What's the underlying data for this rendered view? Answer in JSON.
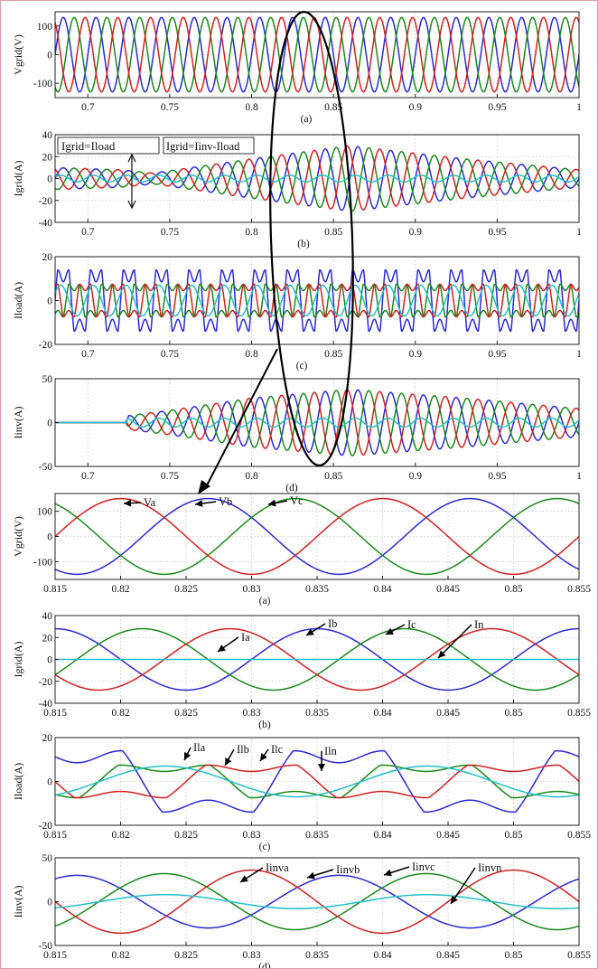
{
  "chart_data": [
    {
      "panel": "(a)",
      "type": "line",
      "ylabel": "Vgrid(V)",
      "xlim": [
        0.68,
        1.0
      ],
      "ylim": [
        -150,
        150
      ],
      "xticks": [
        "0.7",
        "0.75",
        "0.8",
        "0.85",
        "0.9",
        "0.95",
        "1"
      ],
      "yticks": [
        "100",
        "0",
        "-100"
      ],
      "ytick_values": [
        100,
        0,
        -100
      ],
      "grid": true,
      "frequency_hz": 50,
      "amplitude": 130,
      "series": [
        {
          "color": "#2a2ad8",
          "phase_deg": 0
        },
        {
          "color": "#1a8a1a",
          "phase_deg": -120
        },
        {
          "color": "#d42020",
          "phase_deg": 120
        }
      ]
    },
    {
      "panel": "(b)",
      "type": "line",
      "ylabel": "Igrid(A)",
      "xlim": [
        0.68,
        1.0
      ],
      "ylim": [
        -40,
        40
      ],
      "xticks": [
        "0.7",
        "0.75",
        "0.8",
        "0.85",
        "0.9",
        "0.95",
        "1"
      ],
      "yticks": [
        "40",
        "20",
        "0",
        "-20",
        "-40"
      ],
      "ytick_values": [
        40,
        20,
        0,
        -20,
        -40
      ],
      "grid": true,
      "frequency_hz": 50,
      "annotations": [
        "Igrid=Iload",
        "Igrid=Iinv-Iload"
      ],
      "envelope": {
        "t": [
          0.68,
          0.72,
          0.74,
          0.8,
          0.86,
          0.93,
          1.0
        ],
        "amp": [
          10,
          8,
          5,
          18,
          30,
          18,
          8
        ]
      },
      "series": [
        {
          "color": "#2a2ad8",
          "phase_deg": 0
        },
        {
          "color": "#1a8a1a",
          "phase_deg": -120
        },
        {
          "color": "#d42020",
          "phase_deg": 120
        }
      ],
      "neutral": {
        "color": "#20c0c8",
        "amplitude": 3
      }
    },
    {
      "panel": "(c)",
      "type": "line",
      "ylabel": "Iload(A)",
      "xlim": [
        0.68,
        1.0
      ],
      "ylim": [
        -20,
        20
      ],
      "xticks": [
        "0.7",
        "0.75",
        "0.8",
        "0.85",
        "0.9",
        "0.95",
        "1"
      ],
      "yticks": [
        "20",
        "0",
        "-20"
      ],
      "ytick_values": [
        20,
        0,
        -20
      ],
      "grid": true,
      "frequency_hz": 50,
      "series": [
        {
          "color": "#2a2ad8",
          "phase_deg": 0,
          "amplitude": 15
        },
        {
          "color": "#1a8a1a",
          "phase_deg": -120,
          "amplitude": 8
        },
        {
          "color": "#d42020",
          "phase_deg": 120,
          "amplitude": 8
        }
      ],
      "neutral": {
        "color": "#20c0c8",
        "amplitude": 7
      }
    },
    {
      "panel": "(d)",
      "type": "line",
      "ylabel": "Iinv(A)",
      "xlim": [
        0.68,
        1.0
      ],
      "ylim": [
        -50,
        50
      ],
      "xticks": [
        "0.7",
        "0.75",
        "0.8",
        "0.85",
        "0.9",
        "0.95",
        "1"
      ],
      "yticks": [
        "50",
        "0",
        "-50"
      ],
      "ytick_values": [
        50,
        0,
        -50
      ],
      "grid": true,
      "frequency_hz": 50,
      "envelope": {
        "t": [
          0.68,
          0.723,
          0.725,
          0.75,
          0.8,
          0.86,
          0.93,
          1.0
        ],
        "amp": [
          0,
          0,
          8,
          14,
          28,
          38,
          28,
          16
        ]
      },
      "series": [
        {
          "color": "#2a2ad8",
          "phase_deg": 0
        },
        {
          "color": "#1a8a1a",
          "phase_deg": -120
        },
        {
          "color": "#d42020",
          "phase_deg": 120
        }
      ],
      "neutral": {
        "color": "#20c0c8",
        "amplitude": 5
      }
    },
    {
      "panel": "(a)",
      "type": "line",
      "ylabel": "Vgrid(V)",
      "xlim": [
        0.815,
        0.855
      ],
      "ylim": [
        -170,
        170
      ],
      "xticks": [
        "0.815",
        "0.82",
        "0.825",
        "0.83",
        "0.835",
        "0.84",
        "0.845",
        "0.85",
        "0.855"
      ],
      "yticks": [
        "100",
        "0",
        "-100"
      ],
      "ytick_values": [
        100,
        0,
        -100
      ],
      "grid": true,
      "frequency_hz": 50,
      "series": [
        {
          "name": "Va",
          "color": "#2a2ad8",
          "phase_deg": -30,
          "amplitude": 150
        },
        {
          "name": "Vb",
          "color": "#1a8a1a",
          "phase_deg": -150,
          "amplitude": 150
        },
        {
          "name": "Vc",
          "color": "#d42020",
          "phase_deg": 90,
          "amplitude": 150
        }
      ]
    },
    {
      "panel": "(b)",
      "type": "line",
      "ylabel": "Igrid(A)",
      "xlim": [
        0.815,
        0.855
      ],
      "ylim": [
        -40,
        40
      ],
      "xticks": [
        "0.815",
        "0.82",
        "0.825",
        "0.83",
        "0.835",
        "0.84",
        "0.845",
        "0.85",
        "0.855"
      ],
      "yticks": [
        "40",
        "20",
        "0",
        "-20",
        "-40"
      ],
      "ytick_values": [
        40,
        20,
        0,
        -20,
        -40
      ],
      "grid": true,
      "frequency_hz": 50,
      "series": [
        {
          "name": "Ia",
          "color": "#2a2ad8",
          "phase_deg": 180,
          "amplitude": 28
        },
        {
          "name": "Ib",
          "color": "#1a8a1a",
          "phase_deg": 60,
          "amplitude": 28
        },
        {
          "name": "Ic",
          "color": "#d42020",
          "phase_deg": -60,
          "amplitude": 28
        }
      ],
      "neutral": {
        "name": "In",
        "color": "#20c0c8",
        "amplitude": 0
      }
    },
    {
      "panel": "(c)",
      "type": "line",
      "ylabel": "Iload(A)",
      "xlim": [
        0.815,
        0.855
      ],
      "ylim": [
        -20,
        20
      ],
      "xticks": [
        "0.815",
        "0.82",
        "0.825",
        "0.83",
        "0.835",
        "0.84",
        "0.845",
        "0.85",
        "0.855"
      ],
      "yticks": [
        "20",
        "0",
        "-20"
      ],
      "ytick_values": [
        20,
        0,
        -20
      ],
      "grid": true,
      "frequency_hz": 50,
      "series": [
        {
          "name": "Ila",
          "color": "#2a2ad8",
          "phase_deg": 150,
          "amplitude": 15
        },
        {
          "name": "Ilb",
          "color": "#1a8a1a",
          "phase_deg": 30,
          "amplitude": 8
        },
        {
          "name": "Ilc",
          "color": "#d42020",
          "phase_deg": -90,
          "amplitude": 8
        }
      ],
      "neutral": {
        "name": "Iln",
        "color": "#20c0c8",
        "amplitude": 7
      }
    },
    {
      "panel": "(d)",
      "type": "line",
      "ylabel": "Iinv(A)",
      "xlim": [
        0.815,
        0.855
      ],
      "ylim": [
        -50,
        50
      ],
      "xticks": [
        "0.815",
        "0.82",
        "0.825",
        "0.83",
        "0.835",
        "0.84",
        "0.845",
        "0.85",
        "0.855"
      ],
      "yticks": [
        "50",
        "0",
        "-50"
      ],
      "ytick_values": [
        50,
        0,
        -50
      ],
      "grid": true,
      "frequency_hz": 50,
      "series": [
        {
          "name": "Iinva",
          "color": "#2a2ad8",
          "phase_deg": 150,
          "amplitude": 30
        },
        {
          "name": "Iinvb",
          "color": "#1a8a1a",
          "phase_deg": 30,
          "amplitude": 32
        },
        {
          "name": "Iinvc",
          "color": "#d42020",
          "phase_deg": -90,
          "amplitude": 36
        }
      ],
      "neutral": {
        "name": "Iinvn",
        "color": "#20c0c8",
        "amplitude": 8
      }
    }
  ]
}
